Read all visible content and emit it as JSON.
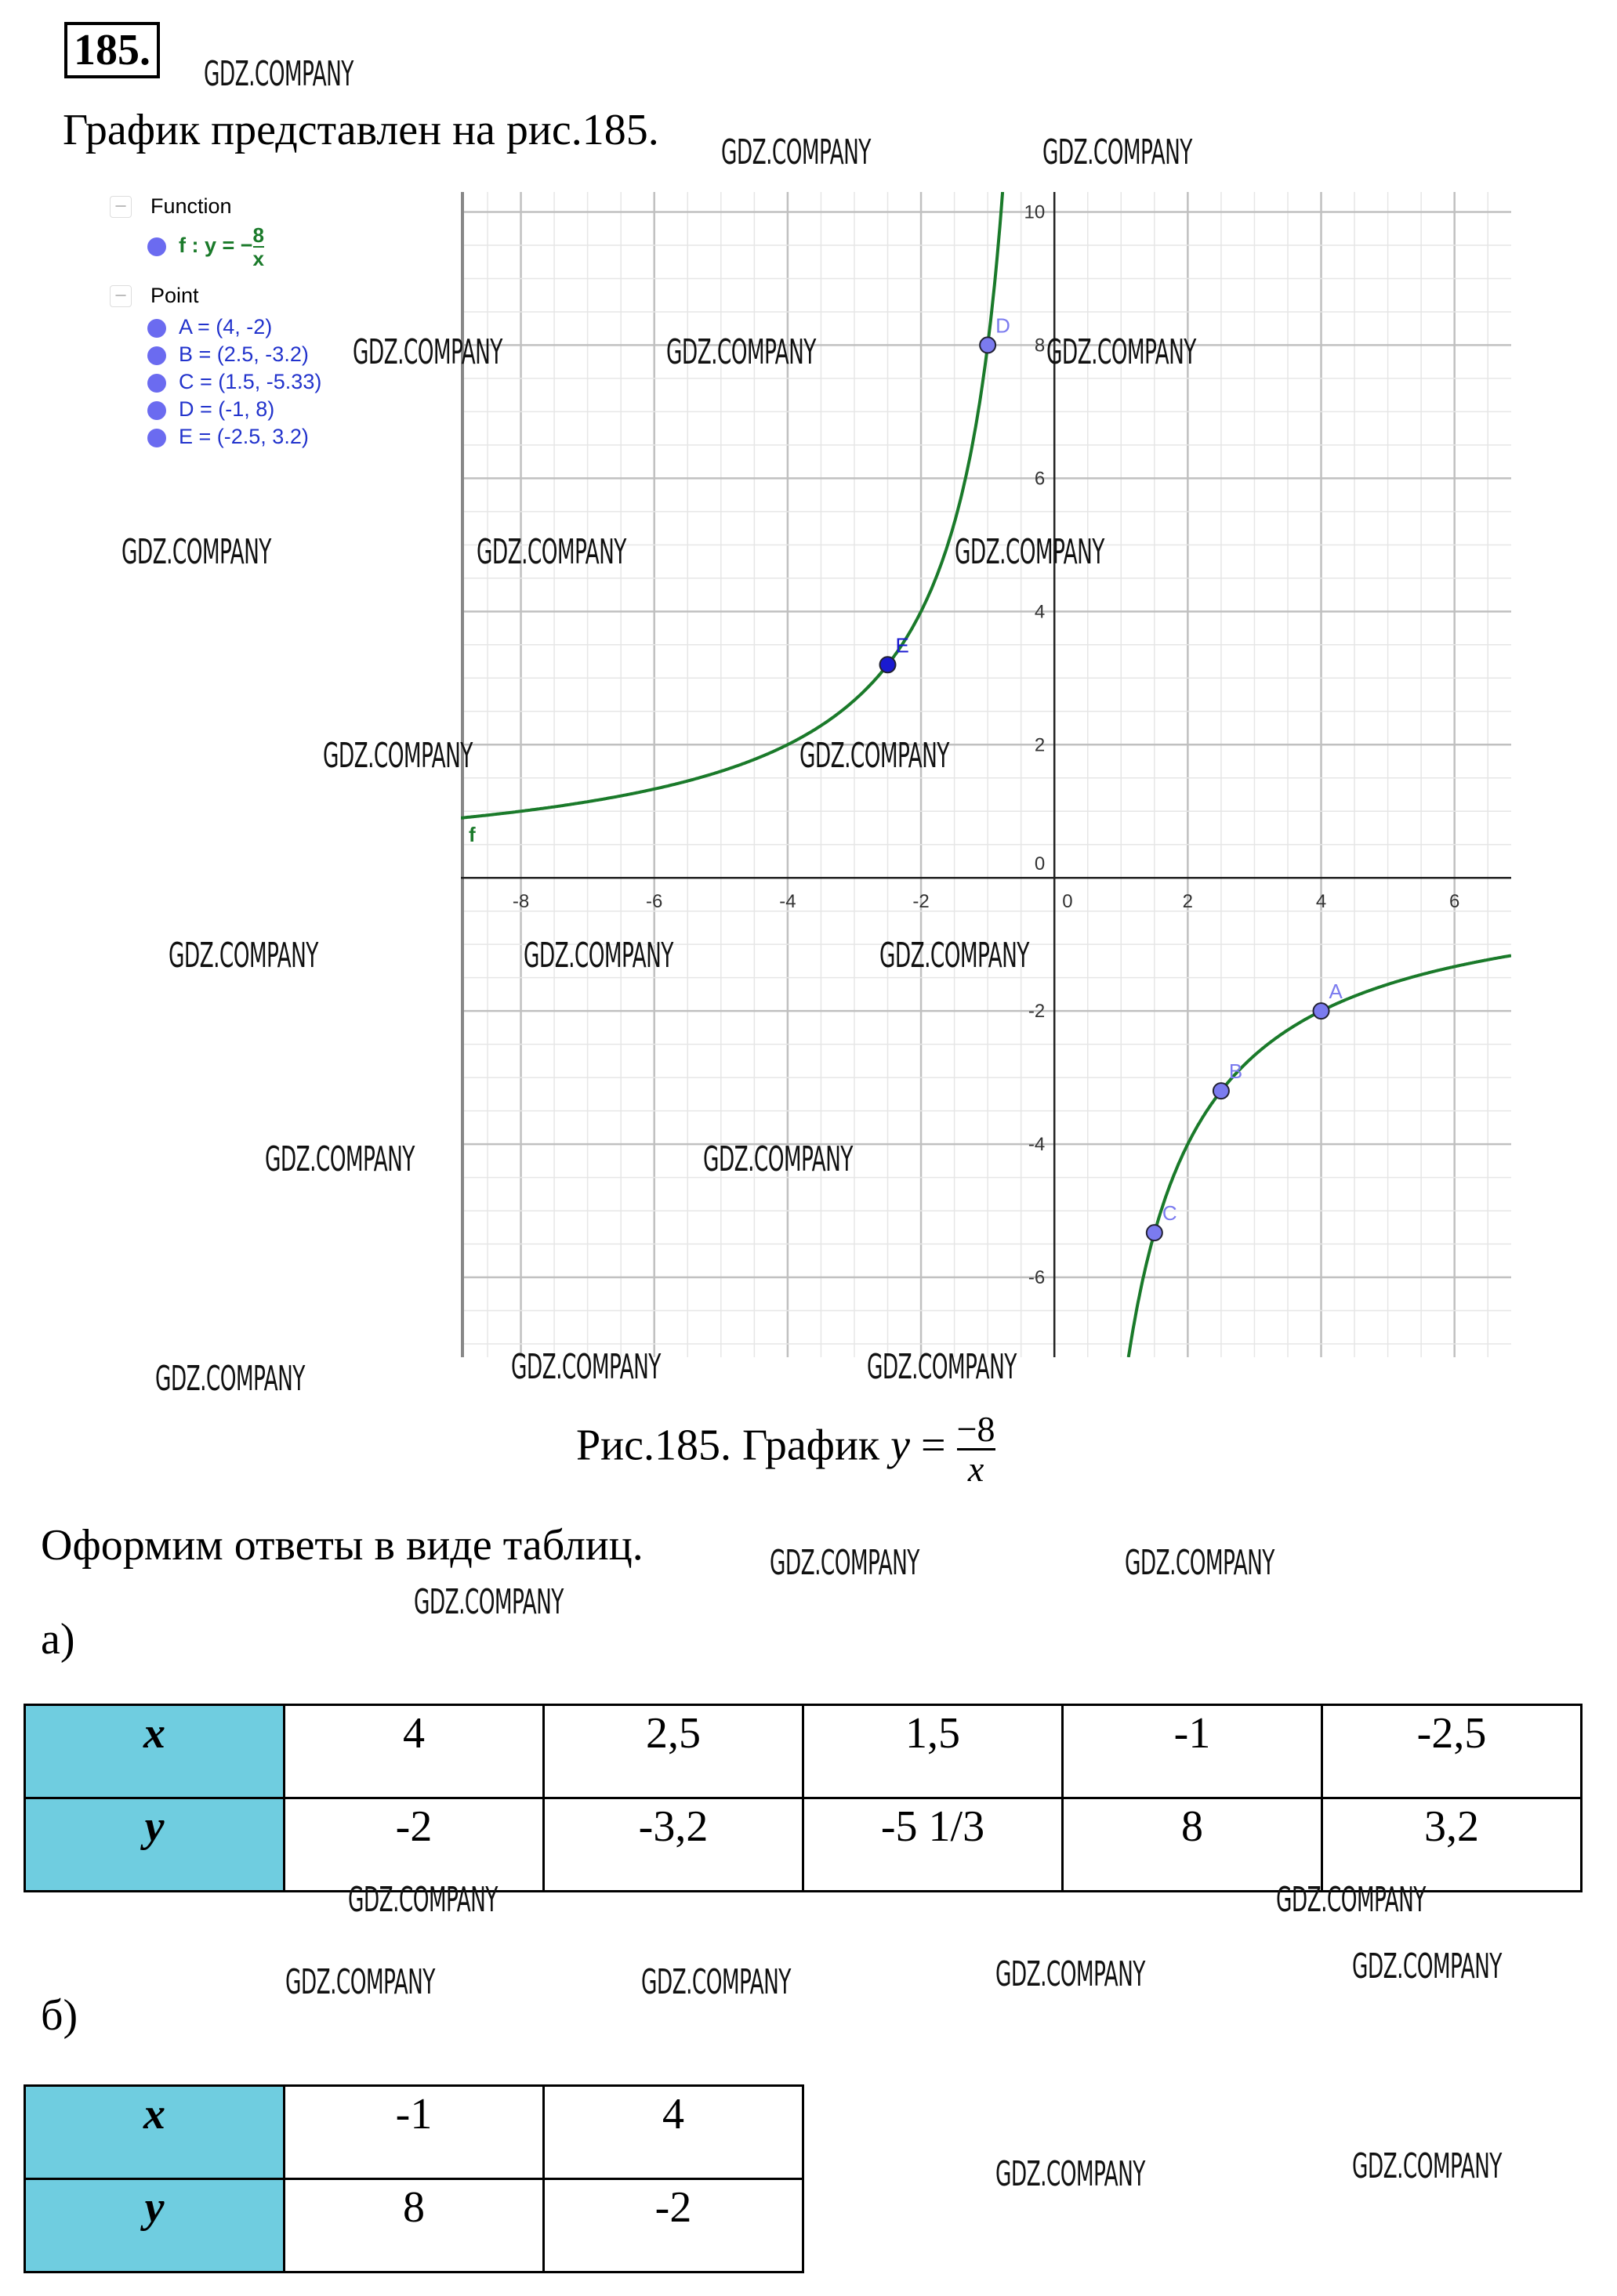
{
  "exercise_number": "185.",
  "intro": "График представлен на рис.185.",
  "legend": {
    "function_header": "Function",
    "function_label": "f : y = −",
    "function_num": "8",
    "function_den": "x",
    "point_header": "Point",
    "points": [
      "A = (4, -2)",
      "B = (2.5, -3.2)",
      "C = (1.5, -5.33)",
      "D = (-1, 8)",
      "E = (-2.5, 3.2)"
    ]
  },
  "chart_data": {
    "type": "line",
    "function": "y = -8/x",
    "curve_label": "f",
    "xlim": [
      -8.9,
      6.85
    ],
    "ylim": [
      -7.2,
      10.3
    ],
    "x_ticks": [
      -8,
      -6,
      -4,
      -2,
      0,
      2,
      4,
      6
    ],
    "y_ticks": [
      10,
      8,
      6,
      4,
      2,
      0,
      -2,
      -4,
      -6
    ],
    "grid": true,
    "curve_color": "#1a7a2a",
    "point_color": "#7b7bef",
    "points": [
      {
        "name": "A",
        "x": 4,
        "y": -2
      },
      {
        "name": "B",
        "x": 2.5,
        "y": -3.2
      },
      {
        "name": "C",
        "x": 1.5,
        "y": -5.33
      },
      {
        "name": "D",
        "x": -1,
        "y": 8
      },
      {
        "name": "E",
        "x": -2.5,
        "y": 3.2
      }
    ]
  },
  "caption": {
    "prefix": "Рис.185. График ",
    "y": "y",
    "eq": " = ",
    "num": "−8",
    "den": "x"
  },
  "answer_intro": "Оформим ответы в виде таблиц.",
  "part_a": {
    "label": "а)",
    "x_header": "x",
    "y_header": "y",
    "x": [
      "4",
      "2,5",
      "1,5",
      "-1",
      "-2,5"
    ],
    "y": [
      "-2",
      "-3,2",
      "-5 1/3",
      "8",
      "3,2"
    ]
  },
  "part_b": {
    "label": "б)",
    "x_header": "x",
    "y_header": "y",
    "x": [
      "-1",
      "4"
    ],
    "y": [
      "8",
      "-2"
    ]
  },
  "watermark": "GDZ.COMPANY",
  "colors": {
    "header_cell": "#6fcde0"
  }
}
